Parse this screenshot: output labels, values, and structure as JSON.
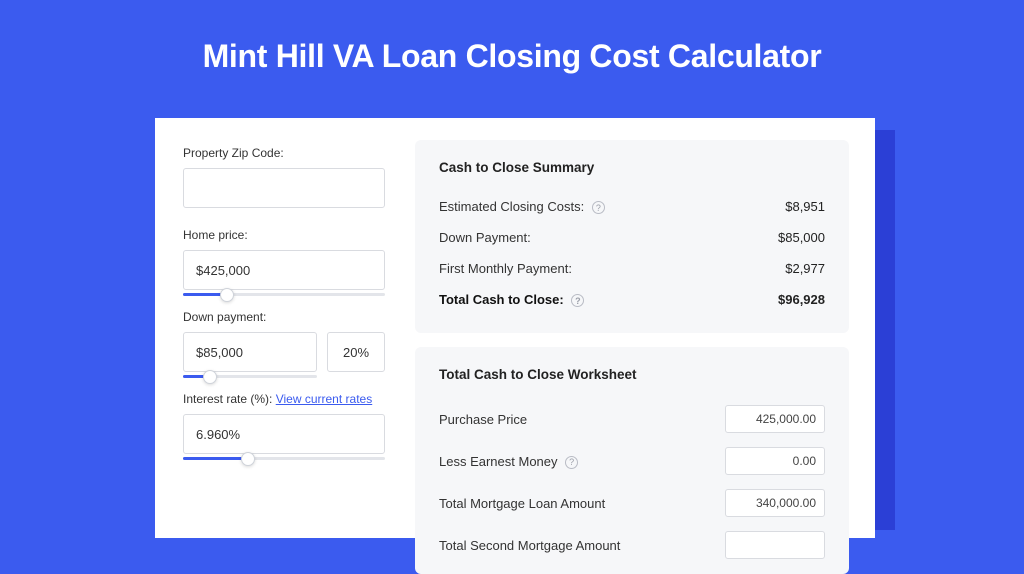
{
  "page": {
    "title": "Mint Hill VA Loan Closing Cost Calculator",
    "background_color": "#3b5bef",
    "shadow_color": "#2b3fd6",
    "panel_bg": "#ffffff",
    "card_bg": "#f6f7f9",
    "accent_color": "#3b5bef"
  },
  "inputs": {
    "zip": {
      "label": "Property Zip Code:",
      "value": ""
    },
    "home_price": {
      "label": "Home price:",
      "value": "$425,000",
      "slider_pct": 22
    },
    "down_payment": {
      "label": "Down payment:",
      "value": "$85,000",
      "pct": "20%",
      "slider_pct": 20
    },
    "interest_rate": {
      "label": "Interest rate (%):",
      "link_text": "View current rates",
      "value": "6.960%",
      "slider_pct": 32
    }
  },
  "summary": {
    "title": "Cash to Close Summary",
    "rows": [
      {
        "label": "Estimated Closing Costs:",
        "has_help": true,
        "value": "$8,951"
      },
      {
        "label": "Down Payment:",
        "has_help": false,
        "value": "$85,000"
      },
      {
        "label": "First Monthly Payment:",
        "has_help": false,
        "value": "$2,977"
      }
    ],
    "total": {
      "label": "Total Cash to Close:",
      "has_help": true,
      "value": "$96,928"
    }
  },
  "worksheet": {
    "title": "Total Cash to Close Worksheet",
    "rows": [
      {
        "label": "Purchase Price",
        "has_help": false,
        "value": "425,000.00"
      },
      {
        "label": "Less Earnest Money",
        "has_help": true,
        "value": "0.00"
      },
      {
        "label": "Total Mortgage Loan Amount",
        "has_help": false,
        "value": "340,000.00"
      },
      {
        "label": "Total Second Mortgage Amount",
        "has_help": false,
        "value": ""
      }
    ]
  }
}
